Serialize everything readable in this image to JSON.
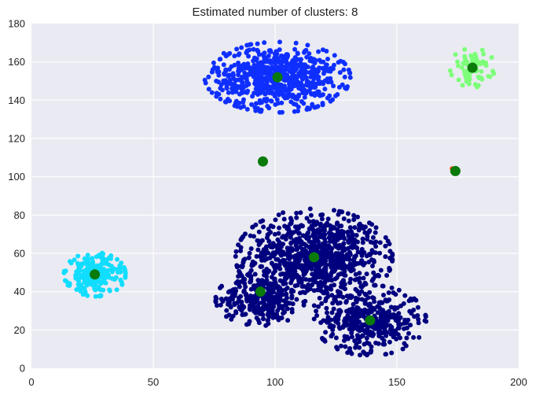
{
  "chart_data": {
    "type": "scatter",
    "title": "Estimated number of clusters: 8",
    "xlabel": "",
    "ylabel": "",
    "xlim": [
      0,
      200
    ],
    "ylim": [
      0,
      180
    ],
    "grid": true,
    "x_ticks": [
      "0",
      "50",
      "100",
      "150",
      "200"
    ],
    "y_ticks": [
      "0",
      "20",
      "40",
      "60",
      "80",
      "100",
      "120",
      "140",
      "160",
      "180"
    ],
    "background_color": "#eaeaf2",
    "grid_color": "#ffffff",
    "center_color": "#0a7a0a",
    "clusters": [
      {
        "color": "#00007f",
        "center": [
          116,
          58
        ],
        "spread": [
          14,
          11
        ],
        "n": 900
      },
      {
        "color": "#00007f",
        "center": [
          94,
          36
        ],
        "spread": [
          8,
          6
        ],
        "n": 300
      },
      {
        "color": "#00007f",
        "center": [
          139,
          25
        ],
        "spread": [
          10,
          8
        ],
        "n": 400
      },
      {
        "color": "#0f2fff",
        "center": [
          101,
          152
        ],
        "spread": [
          13,
          8
        ],
        "n": 700
      },
      {
        "color": "#11ddff",
        "center": [
          26,
          49
        ],
        "spread": [
          5.5,
          5
        ],
        "n": 250
      },
      {
        "color": "#7dff7a",
        "center": [
          181,
          157
        ],
        "spread": [
          4,
          4.5
        ],
        "n": 70
      },
      {
        "color": "#ffcc00",
        "center": [
          95,
          108
        ],
        "spread": [
          0.8,
          0.5
        ],
        "n": 6
      },
      {
        "color": "#ff4400",
        "center": [
          174,
          103
        ],
        "spread": [
          0.6,
          2
        ],
        "n": 4
      }
    ],
    "centers": [
      [
        101,
        152
      ],
      [
        181,
        157
      ],
      [
        95,
        108
      ],
      [
        174,
        103
      ],
      [
        26,
        49
      ],
      [
        116,
        58
      ],
      [
        94,
        40
      ],
      [
        139,
        25
      ]
    ]
  }
}
